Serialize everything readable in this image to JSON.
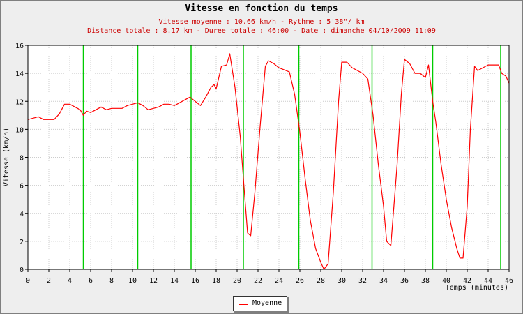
{
  "title": "Vitesse en fonction du temps",
  "subtitle1": "Vitesse moyenne : 10.66 km/h - Rythme : 5'38\"/ km",
  "subtitle2": "Distance totale : 8.17 km - Duree totale : 46:00 - Date : dimanche 04/10/2009 11:09",
  "colors": {
    "series": "#ff0000",
    "markers": "#00cc00",
    "subtitle": "#cc0000",
    "grid": "#cccccc",
    "background": "#eeeeee",
    "plot": "#ffffff"
  },
  "chart_data": {
    "type": "line",
    "title": "Vitesse en fonction du temps",
    "xlabel": "Temps (minutes)",
    "ylabel": "Vitesse (km/h)",
    "xlim": [
      0,
      46
    ],
    "ylim": [
      0,
      16
    ],
    "xticks": [
      0,
      2,
      4,
      6,
      8,
      10,
      12,
      14,
      16,
      18,
      20,
      22,
      24,
      26,
      28,
      30,
      32,
      34,
      36,
      38,
      40,
      42,
      44,
      46
    ],
    "yticks": [
      0,
      2,
      4,
      6,
      8,
      10,
      12,
      14,
      16
    ],
    "grid": true,
    "legend_position": "bottom-center",
    "km_markers": [
      5.3,
      10.5,
      15.6,
      20.6,
      25.9,
      32.9,
      38.7,
      45.2
    ],
    "series": [
      {
        "name": "Moyenne",
        "x": [
          0,
          0.5,
          1,
          1.5,
          2,
          2.5,
          3,
          3.5,
          4,
          4.5,
          5,
          5.3,
          5.6,
          6,
          6.5,
          7,
          7.5,
          8,
          8.5,
          9,
          9.5,
          10,
          10.5,
          11,
          11.5,
          12,
          12.5,
          13,
          13.5,
          14,
          14.5,
          15,
          15.5,
          16,
          16.5,
          17,
          17.5,
          17.8,
          18,
          18.5,
          19,
          19.3,
          19.8,
          20.3,
          20.7,
          21,
          21.3,
          21.7,
          22.2,
          22.7,
          23,
          23.5,
          24,
          25,
          25.5,
          26,
          26.5,
          27,
          27.5,
          28,
          28.3,
          28.7,
          29.2,
          29.7,
          30,
          30.5,
          31,
          32,
          32.5,
          33,
          33.5,
          34,
          34.3,
          34.7,
          35.3,
          35.7,
          36,
          36.5,
          37,
          37.5,
          38,
          38.3,
          38.7,
          39,
          39.5,
          40,
          40.5,
          41,
          41.3,
          41.6,
          42,
          42.3,
          42.7,
          43,
          43.5,
          44,
          44.5,
          45,
          45.3,
          45.7,
          46
        ],
        "y": [
          10.7,
          10.8,
          10.9,
          10.7,
          10.7,
          10.7,
          11.1,
          11.8,
          11.8,
          11.6,
          11.4,
          11.0,
          11.3,
          11.2,
          11.4,
          11.6,
          11.4,
          11.5,
          11.5,
          11.5,
          11.7,
          11.8,
          11.9,
          11.7,
          11.4,
          11.5,
          11.6,
          11.8,
          11.8,
          11.7,
          11.9,
          12.1,
          12.3,
          12.0,
          11.7,
          12.3,
          13.0,
          13.2,
          12.9,
          14.5,
          14.6,
          15.4,
          13.0,
          9.5,
          5.5,
          2.6,
          2.4,
          5.5,
          10.2,
          14.5,
          14.9,
          14.7,
          14.4,
          14.1,
          12.5,
          9.8,
          6.5,
          3.5,
          1.5,
          0.5,
          0.0,
          0.4,
          5.5,
          12.0,
          14.8,
          14.8,
          14.4,
          14.0,
          13.6,
          11.0,
          7.5,
          4.5,
          2.0,
          1.7,
          7.5,
          12.5,
          15.0,
          14.7,
          14.0,
          14.0,
          13.7,
          14.6,
          12.0,
          10.5,
          7.5,
          5.0,
          3.0,
          1.5,
          0.8,
          0.8,
          4.5,
          10.0,
          14.5,
          14.2,
          14.4,
          14.6,
          14.6,
          14.6,
          14.0,
          13.8,
          13.3
        ]
      }
    ]
  }
}
